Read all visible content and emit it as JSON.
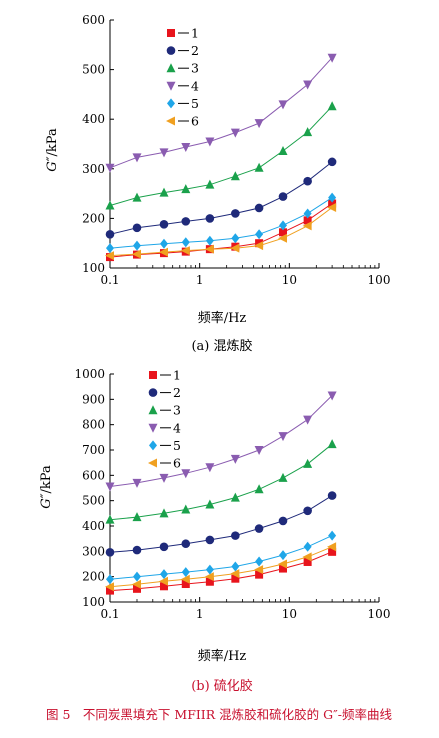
{
  "chart_data": [
    {
      "type": "line",
      "subtitle": "(a) 混炼胶",
      "xlabel": "频率/Hz",
      "ylabel_symbol": "G″",
      "ylabel_unit": "/kPa",
      "x_scale": "log",
      "xlim": [
        0.1,
        100
      ],
      "xticks": [
        0.1,
        1,
        10,
        100
      ],
      "xtick_labels": [
        "0.1",
        "1",
        "10",
        "100"
      ],
      "ylim": [
        100,
        600
      ],
      "yticks": [
        100,
        200,
        300,
        400,
        500,
        600
      ],
      "x": [
        0.1,
        0.2,
        0.4,
        0.7,
        1.3,
        2.5,
        4.6,
        8.5,
        16,
        30
      ],
      "legend_position": "top-left",
      "series": [
        {
          "name": "1",
          "color": "#e8141c",
          "marker": "square",
          "values": [
            122,
            127,
            130,
            133,
            138,
            143,
            150,
            172,
            196,
            230
          ]
        },
        {
          "name": "2",
          "color": "#1f2a7a",
          "marker": "circle",
          "values": [
            168,
            181,
            188,
            194,
            200,
            210,
            221,
            244,
            275,
            314
          ]
        },
        {
          "name": "3",
          "color": "#1aa14b",
          "marker": "triangle-up",
          "values": [
            226,
            242,
            252,
            259,
            268,
            285,
            302,
            336,
            374,
            426
          ]
        },
        {
          "name": "4",
          "color": "#8a5cb0",
          "marker": "triangle-down",
          "values": [
            302,
            323,
            333,
            344,
            355,
            373,
            392,
            430,
            470,
            524
          ]
        },
        {
          "name": "5",
          "color": "#1fa6e8",
          "marker": "diamond",
          "values": [
            140,
            145,
            149,
            152,
            155,
            160,
            168,
            186,
            210,
            242
          ]
        },
        {
          "name": "6",
          "color": "#f0a020",
          "marker": "triangle-left",
          "values": [
            125,
            128,
            132,
            135,
            138,
            140,
            145,
            160,
            185,
            222
          ]
        }
      ]
    },
    {
      "type": "line",
      "subtitle": "(b) 硫化胶",
      "xlabel": "频率/Hz",
      "ylabel_symbol": "G″",
      "ylabel_unit": "/kPa",
      "x_scale": "log",
      "xlim": [
        0.1,
        100
      ],
      "xticks": [
        0.1,
        1,
        10,
        100
      ],
      "xtick_labels": [
        "0.1",
        "1",
        "10",
        "100"
      ],
      "ylim": [
        100,
        1000
      ],
      "yticks": [
        100,
        200,
        300,
        400,
        500,
        600,
        700,
        800,
        900,
        1000
      ],
      "x": [
        0.1,
        0.2,
        0.4,
        0.7,
        1.3,
        2.5,
        4.6,
        8.5,
        16,
        30
      ],
      "legend_position": "top-left",
      "series": [
        {
          "name": "1",
          "color": "#e8141c",
          "marker": "square",
          "values": [
            145,
            152,
            162,
            171,
            180,
            192,
            208,
            232,
            258,
            298
          ]
        },
        {
          "name": "2",
          "color": "#1f2a7a",
          "marker": "circle",
          "values": [
            296,
            305,
            318,
            330,
            345,
            362,
            390,
            420,
            460,
            520
          ]
        },
        {
          "name": "3",
          "color": "#1aa14b",
          "marker": "triangle-up",
          "values": [
            425,
            435,
            450,
            465,
            485,
            512,
            545,
            590,
            645,
            723
          ]
        },
        {
          "name": "4",
          "color": "#8a5cb0",
          "marker": "triangle-down",
          "values": [
            556,
            570,
            590,
            608,
            632,
            665,
            700,
            755,
            820,
            915
          ]
        },
        {
          "name": "5",
          "color": "#1fa6e8",
          "marker": "diamond",
          "values": [
            190,
            200,
            210,
            218,
            228,
            240,
            260,
            285,
            318,
            362
          ]
        },
        {
          "name": "6",
          "color": "#f0a020",
          "marker": "triangle-left",
          "values": [
            160,
            170,
            182,
            190,
            200,
            212,
            228,
            250,
            278,
            318
          ]
        }
      ]
    }
  ],
  "figure_caption": "图 5　不同炭黑填充下 MFIIR 混炼胶和硫化胶的 G″-频率曲线"
}
